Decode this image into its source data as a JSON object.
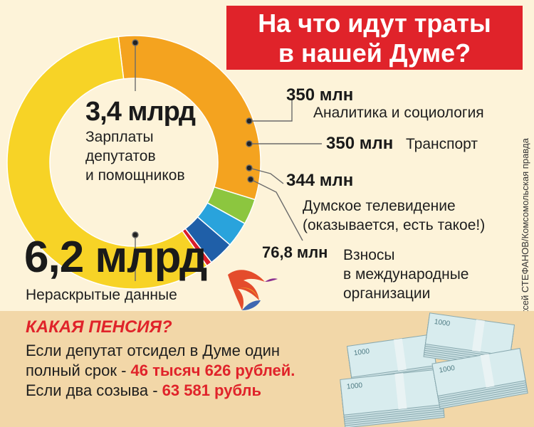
{
  "header": {
    "title_line1": "На что идут траты",
    "title_line2": "в нашей Думе?"
  },
  "chart_data": {
    "type": "pie",
    "style": "donut",
    "slices": [
      {
        "value_text": "3,4 млрд",
        "label_lines": [
          "Зарплаты",
          "депутатов",
          "и помощников"
        ],
        "value": 3400,
        "color": "#f4a31f"
      },
      {
        "value_text": "350 млн",
        "label": "Аналитика и социология",
        "value": 350,
        "color": "#8cc63f"
      },
      {
        "value_text": "350 млн",
        "label": "Транспорт",
        "value": 350,
        "color": "#29a3dc"
      },
      {
        "value_text": "344 млн",
        "label_lines": [
          "Думское телевидение",
          "(оказывается, есть такое!)"
        ],
        "value": 344,
        "color": "#1f5fa8"
      },
      {
        "value_text": "76,8 млн",
        "label_lines": [
          "Взносы",
          "в международные",
          "организации"
        ],
        "value": 76.8,
        "color": "#d91e2b"
      },
      {
        "value_text": "6,2 млрд",
        "label": "Нераскрытые данные",
        "value": 6200,
        "color": "#f7d326"
      }
    ],
    "unit": "млн рублей"
  },
  "credit": "Алексей СТЕФАНОВ/Комсомольская правда",
  "pension": {
    "heading": "КАКАЯ ПЕНСИЯ?",
    "line1": "Если депутат отсидел в Думе один",
    "line2_pre": "полный срок - ",
    "line2_value": "46 тысяч 626 рублей.",
    "line3_pre": "Если два созыва - ",
    "line3_value": "63 581 рубль"
  },
  "money_note": "1000"
}
